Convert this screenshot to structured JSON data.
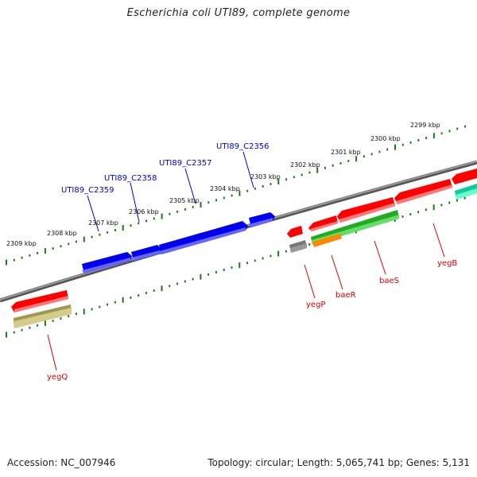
{
  "title": "Escherichia coli UTI89, complete genome",
  "footer": {
    "accession": "Accession: NC_007946",
    "summary": "Topology: circular; Length: 5,065,741 bp; Genes: 5,131"
  },
  "ruler_labels": [
    "2299 kbp",
    "2300 kbp",
    "2301 kbp",
    "2302 kbp",
    "2303 kbp",
    "2304 kbp",
    "2305 kbp",
    "2306 kbp",
    "2307 kbp",
    "2308 kbp",
    "2309 kbp"
  ],
  "genes_forward": [
    {
      "name": "UTI89_C2356"
    },
    {
      "name": "UTI89_C2357"
    },
    {
      "name": "UTI89_C2358"
    },
    {
      "name": "UTI89_C2359"
    }
  ],
  "genes_reverse": [
    {
      "name": "yegB"
    },
    {
      "name": "baeS"
    },
    {
      "name": "baeR"
    },
    {
      "name": "yegP"
    },
    {
      "name": "yegQ"
    }
  ],
  "colors": {
    "forward_gene": "#0000ee",
    "reverse_gene": "#ff0000",
    "backbone": "#808080",
    "ruler": "#1a7a1a",
    "rna_green": "#33cc33",
    "rna_orange": "#ff9900",
    "olive": "#c8c078",
    "gray_feature": "#777777",
    "teal": "#22ddaa"
  }
}
